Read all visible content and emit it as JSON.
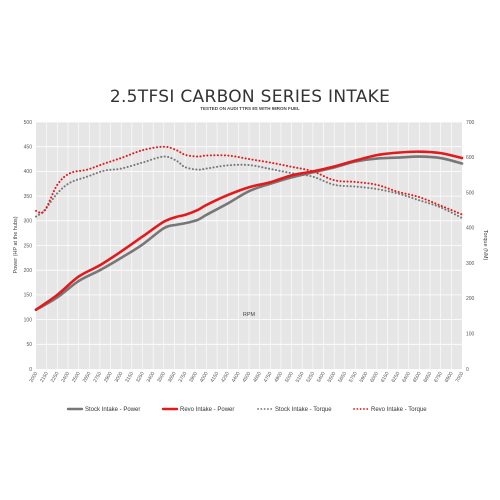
{
  "chart_data": {
    "type": "line",
    "title": "2.5TFSI CARBON SERIES INTAKE",
    "subtitle": "TESTED ON AUDI TTRS 8S WITH 98RON FUEL",
    "xlabel": "RPM",
    "ylabel_left": "Power (HP at the hubs)",
    "ylabel_right": "Torque (NM)",
    "ylim_left": [
      0,
      500
    ],
    "ylim_right": [
      0,
      700
    ],
    "yticks_left": [
      "0",
      "50",
      "100",
      "150",
      "200",
      "250",
      "300",
      "350",
      "400",
      "450",
      "500"
    ],
    "yticks_right": [
      "0",
      "100",
      "200",
      "300",
      "400",
      "500",
      "600",
      "700"
    ],
    "xlim": [
      2000,
      7000
    ],
    "x_tick_labels": [
      "2000",
      "2150",
      "2250",
      "2400",
      "2500",
      "2650",
      "2750",
      "2900",
      "3000",
      "3150",
      "3250",
      "3400",
      "3500",
      "3650",
      "3750",
      "3900",
      "4000",
      "4150",
      "4250",
      "4400",
      "4500",
      "4650",
      "4750",
      "4900",
      "5000",
      "5150",
      "5250",
      "5400",
      "5500",
      "5650",
      "5750",
      "5900",
      "6000",
      "6150",
      "6250",
      "6400",
      "6500",
      "6650",
      "6750",
      "6900",
      "7000"
    ],
    "grid": true,
    "legend_position": "bottom",
    "series": [
      {
        "name": "Stock Intake - Power",
        "axis": "left",
        "color": "#777777",
        "style": "solid",
        "x": [
          2000,
          2250,
          2500,
          2750,
          3000,
          3250,
          3500,
          3650,
          3750,
          3900,
          4000,
          4250,
          4500,
          4750,
          5000,
          5250,
          5500,
          5750,
          6000,
          6250,
          6500,
          6750,
          7000
        ],
        "values": [
          120,
          145,
          178,
          200,
          225,
          252,
          285,
          292,
          295,
          302,
          312,
          335,
          360,
          375,
          388,
          398,
          408,
          420,
          426,
          428,
          430,
          427,
          416
        ]
      },
      {
        "name": "Revo Intake - Power",
        "axis": "left",
        "color": "#e31a1c",
        "style": "solid",
        "x": [
          2000,
          2250,
          2500,
          2750,
          3000,
          3250,
          3500,
          3650,
          3750,
          3900,
          4000,
          4250,
          4500,
          4750,
          5000,
          5250,
          5500,
          5750,
          6000,
          6250,
          6500,
          6750,
          7000
        ],
        "values": [
          120,
          150,
          187,
          210,
          238,
          268,
          298,
          308,
          312,
          322,
          332,
          352,
          368,
          378,
          392,
          400,
          410,
          422,
          433,
          438,
          440,
          437,
          427
        ]
      },
      {
        "name": "Stock Intake - Torque",
        "axis": "right",
        "color": "#777777",
        "style": "dotted",
        "x": [
          2000,
          2100,
          2250,
          2400,
          2600,
          2800,
          3000,
          3250,
          3500,
          3650,
          3750,
          3900,
          4000,
          4250,
          4500,
          4750,
          5000,
          5250,
          5500,
          5750,
          6000,
          6250,
          6500,
          6750,
          7000
        ],
        "values": [
          432,
          450,
          498,
          528,
          545,
          562,
          568,
          585,
          602,
          590,
          572,
          565,
          568,
          577,
          578,
          567,
          555,
          545,
          522,
          517,
          510,
          497,
          478,
          458,
          428
        ]
      },
      {
        "name": "Revo Intake - Torque",
        "axis": "right",
        "color": "#e31a1c",
        "style": "dotted",
        "x": [
          2000,
          2100,
          2250,
          2400,
          2600,
          2800,
          3000,
          3250,
          3500,
          3650,
          3750,
          3900,
          4000,
          4250,
          4500,
          4750,
          5000,
          5250,
          5500,
          5750,
          6000,
          6250,
          6500,
          6750,
          7000
        ],
        "values": [
          448,
          448,
          522,
          555,
          565,
          582,
          598,
          620,
          630,
          620,
          607,
          602,
          605,
          605,
          595,
          585,
          573,
          560,
          535,
          530,
          522,
          502,
          487,
          463,
          438
        ]
      }
    ]
  }
}
